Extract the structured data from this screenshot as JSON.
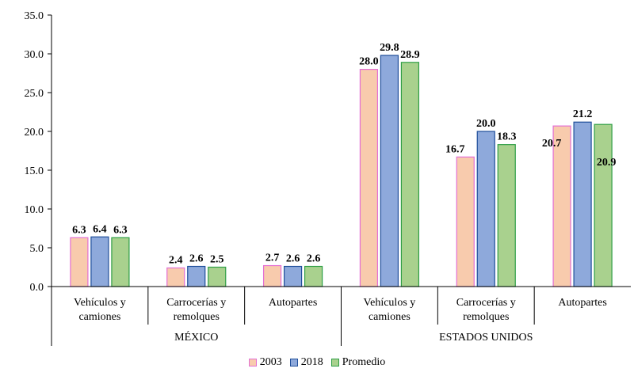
{
  "chart_data": {
    "type": "bar",
    "title": "",
    "xlabel": "",
    "ylabel": "",
    "ylim": [
      0,
      35
    ],
    "yticks": [
      "0.0",
      "5.0",
      "10.0",
      "15.0",
      "20.0",
      "25.0",
      "30.0",
      "35.0"
    ],
    "groups": [
      {
        "name": "MÉXICO",
        "categories": [
          {
            "label": [
              "Vehículos y",
              "camiones"
            ]
          },
          {
            "label": [
              "Carrocerías y",
              "remolques"
            ]
          },
          {
            "label": [
              "Autopartes"
            ]
          }
        ]
      },
      {
        "name": "ESTADOS UNIDOS",
        "categories": [
          {
            "label": [
              "Vehículos y",
              "camiones"
            ]
          },
          {
            "label": [
              "Carrocerías y",
              "remolques"
            ]
          },
          {
            "label": [
              "Autopartes"
            ]
          }
        ]
      }
    ],
    "series": [
      {
        "name": "2003",
        "fill": "#F8CBAD",
        "stroke": "#E36FD4",
        "values": [
          6.3,
          2.4,
          2.7,
          28.0,
          16.7,
          20.7
        ],
        "labels": [
          "6.3",
          "2.4",
          "2.7",
          "28.0",
          "16.7",
          "20.7"
        ]
      },
      {
        "name": "2018",
        "fill": "#8EA9DB",
        "stroke": "#1F4E9A",
        "values": [
          6.4,
          2.6,
          2.6,
          29.8,
          20.0,
          21.2
        ],
        "labels": [
          "6.4",
          "2.6",
          "2.6",
          "29.8",
          "20.0",
          "21.2"
        ]
      },
      {
        "name": "Promedio",
        "fill": "#A9D18E",
        "stroke": "#2E9E45",
        "values": [
          6.3,
          2.5,
          2.6,
          28.9,
          18.3,
          20.9
        ],
        "labels": [
          "6.3",
          "2.5",
          "2.6",
          "28.9",
          "18.3",
          "20.9"
        ]
      }
    ],
    "legend": {
      "position": "bottom"
    }
  }
}
